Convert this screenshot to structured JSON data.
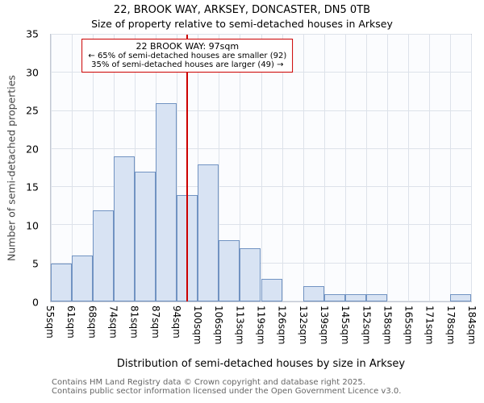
{
  "title": "22, BROOK WAY, ARKSEY, DONCASTER, DN5 0TB",
  "subtitle": "Size of property relative to semi-detached houses in Arksey",
  "ylabel": "Number of semi-detached properties",
  "xlabel": "Distribution of semi-detached houses by size in Arksey",
  "annotation": {
    "line1": "22 BROOK WAY: 97sqm",
    "line2": "← 65% of semi-detached houses are smaller (92)",
    "line3": "35% of semi-detached houses are larger (49) →"
  },
  "footer": {
    "line1": "Contains HM Land Registry data © Crown copyright and database right 2025.",
    "line2": "Contains public sector information licensed under the Open Government Licence v3.0."
  },
  "chart_data": {
    "type": "bar",
    "title": "22, BROOK WAY, ARKSEY, DONCASTER, DN5 0TB — Size of property relative to semi-detached houses in Arksey",
    "xlabel": "Distribution of semi-detached houses by size in Arksey",
    "ylabel": "Number of semi-detached properties",
    "bin_edges_labels": [
      "55sqm",
      "61sqm",
      "68sqm",
      "74sqm",
      "81sqm",
      "87sqm",
      "94sqm",
      "100sqm",
      "106sqm",
      "113sqm",
      "119sqm",
      "126sqm",
      "132sqm",
      "139sqm",
      "145sqm",
      "152sqm",
      "158sqm",
      "165sqm",
      "171sqm",
      "178sqm",
      "184sqm"
    ],
    "values": [
      5,
      6,
      12,
      19,
      17,
      26,
      14,
      18,
      8,
      7,
      3,
      0,
      2,
      1,
      1,
      1,
      0,
      0,
      0,
      1
    ],
    "ylim": [
      0,
      35
    ],
    "yticks": [
      0,
      5,
      10,
      15,
      20,
      25,
      30,
      35
    ],
    "grid": true,
    "legend": "none",
    "marker_value": 97,
    "marker_label": "97sqm",
    "smaller_pct": 65,
    "smaller_count": 92,
    "larger_pct": 35,
    "larger_count": 49,
    "colors": {
      "bar_fill": "#d8e3f3",
      "bar_border": "#7193c2",
      "marker": "#cc0000",
      "grid": "#dde2ea",
      "annotation_border": "#cc0000"
    }
  }
}
